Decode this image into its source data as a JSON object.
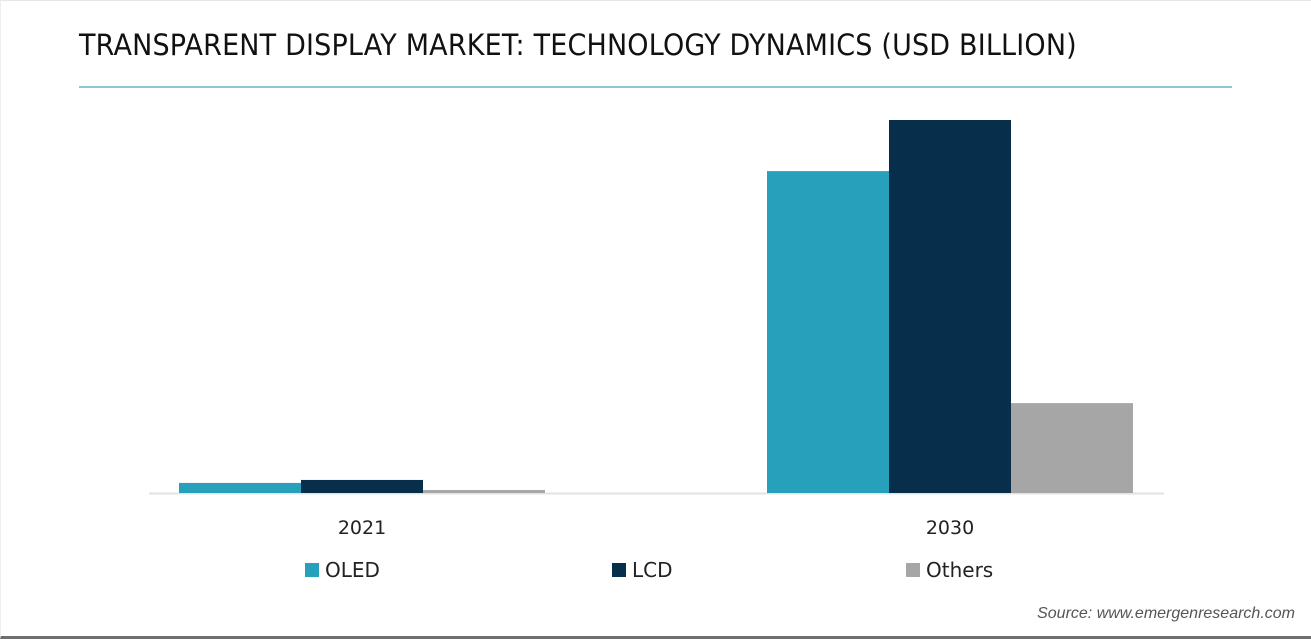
{
  "chart_data": {
    "type": "bar",
    "title": "TRANSPARENT DISPLAY MARKET: TECHNOLOGY DYNAMICS (USD BILLION)",
    "xlabel": "",
    "ylabel": "",
    "categories": [
      "2021",
      "2030"
    ],
    "series": [
      {
        "name": "OLED",
        "color": "#27a1bb",
        "values": [
          2.7,
          86.3
        ]
      },
      {
        "name": "LCD",
        "color": "#072f4b",
        "values": [
          3.5,
          100
        ]
      },
      {
        "name": "Others",
        "color": "#a6a6a6",
        "values": [
          0.8,
          24.1
        ]
      }
    ],
    "ylim": [
      0,
      100
    ],
    "y_axis_visible": false,
    "grid": false,
    "legend": "bottom",
    "value_note": "No axis scale shown; values are relative magnitudes (LCD 2030 = 100)"
  },
  "source": "Source: www.emergenresearch.com"
}
